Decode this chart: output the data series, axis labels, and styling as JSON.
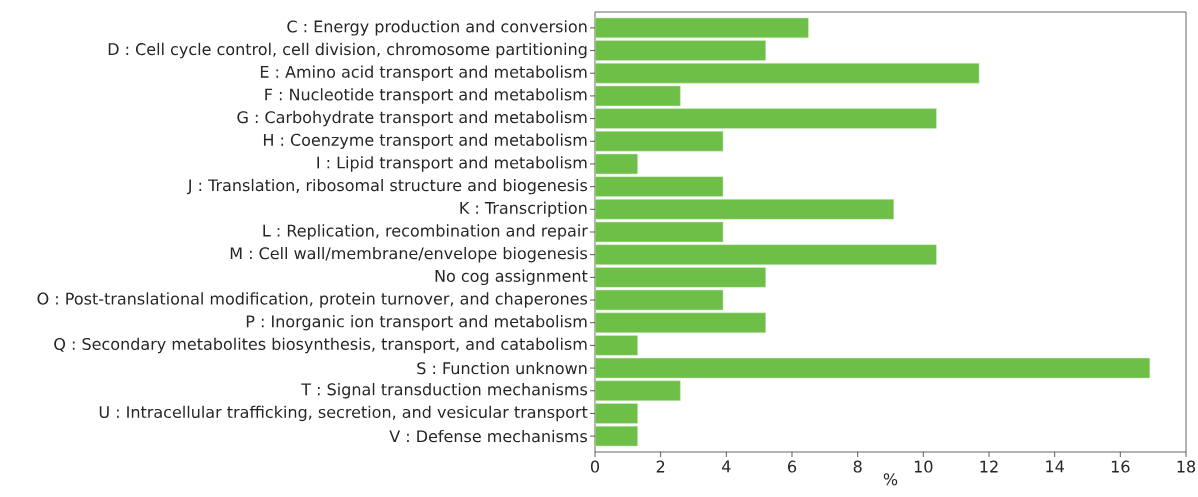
{
  "chart_data": {
    "type": "bar",
    "orientation": "horizontal",
    "xlabel": "%",
    "categories": [
      "C : Energy production and conversion",
      "D : Cell cycle control, cell division, chromosome partitioning",
      "E : Amino acid transport and metabolism",
      "F : Nucleotide transport and metabolism",
      "G : Carbohydrate transport and metabolism",
      "H : Coenzyme transport and metabolism",
      "I : Lipid transport and metabolism",
      "J : Translation, ribosomal structure and biogenesis",
      "K : Transcription",
      "L : Replication, recombination and repair",
      "M : Cell wall/membrane/envelope biogenesis",
      "No cog assignment",
      "O : Post-translational modification, protein turnover, and chaperones",
      "P : Inorganic ion transport and metabolism",
      "Q : Secondary metabolites biosynthesis, transport, and catabolism",
      "S : Function unknown",
      "T : Signal transduction mechanisms",
      "U : Intracellular trafficking, secretion, and vesicular transport",
      "V : Defense mechanisms"
    ],
    "values": [
      6.5,
      5.2,
      11.7,
      2.6,
      10.4,
      3.9,
      1.3,
      3.9,
      9.1,
      3.9,
      10.4,
      5.2,
      3.9,
      5.2,
      1.3,
      16.9,
      2.6,
      1.3,
      1.3
    ],
    "color": "#6dbf47",
    "xlim": [
      0,
      18
    ],
    "xticks": [
      0,
      2,
      4,
      6,
      8,
      10,
      12,
      14,
      16,
      18
    ]
  }
}
